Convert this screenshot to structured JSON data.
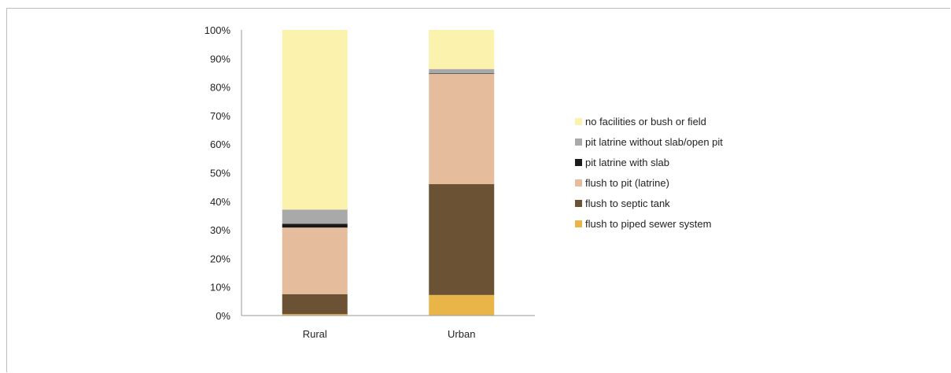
{
  "chart_data": {
    "type": "bar",
    "stacked": true,
    "percent": true,
    "title": "",
    "categories": [
      "Rural",
      "Urban"
    ],
    "y_ticks": [
      "0%",
      "10%",
      "20%",
      "30%",
      "40%",
      "50%",
      "60%",
      "70%",
      "80%",
      "90%",
      "100%"
    ],
    "ylim": [
      0,
      100
    ],
    "legend_position": "right",
    "series": [
      {
        "name": "flush to piped sewer system",
        "color": "#e9b548",
        "values": [
          0.5,
          7.2
        ]
      },
      {
        "name": "flush to septic tank",
        "color": "#6b5234",
        "values": [
          7.0,
          38.8
        ]
      },
      {
        "name": "flush to pit (latrine)",
        "color": "#e6bd9c",
        "values": [
          23.3,
          38.6
        ]
      },
      {
        "name": "pit latrine with slab",
        "color": "#1a1a1a",
        "values": [
          1.3,
          0.2
        ]
      },
      {
        "name": "pit latrine without slab/open pit",
        "color": "#a9a9a9",
        "values": [
          5.0,
          1.5
        ]
      },
      {
        "name": "no facilities or bush or field",
        "color": "#fbf2ad",
        "values": [
          62.9,
          13.7
        ]
      }
    ]
  }
}
